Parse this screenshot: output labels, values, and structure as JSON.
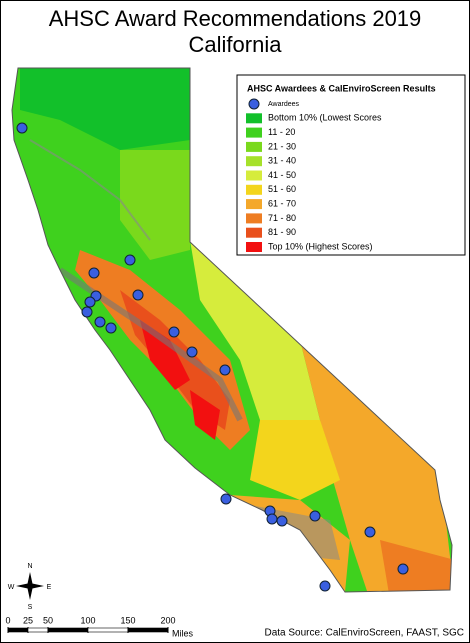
{
  "title": [
    "AHSC Award Recommendations 2019",
    "California"
  ],
  "legend": {
    "title": "AHSC Awardees & CalEnviroScreen Results",
    "items": [
      {
        "label": "Awardees",
        "color": "#3a5fe0"
      },
      {
        "label": "Bottom 10% (Lowest Scores",
        "color": "#12c02a"
      },
      {
        "label": "11 - 20",
        "color": "#3fd11e"
      },
      {
        "label": "21 - 30",
        "color": "#7ad91c"
      },
      {
        "label": "31 - 40",
        "color": "#a6e12a"
      },
      {
        "label": "41 - 50",
        "color": "#d6ec3c"
      },
      {
        "label": "51 - 60",
        "color": "#f3d51c"
      },
      {
        "label": "61 - 70",
        "color": "#f4a82a"
      },
      {
        "label": "71 - 80",
        "color": "#ee7d22"
      },
      {
        "label": "81 - 90",
        "color": "#e9501c"
      },
      {
        "label": "Top 10% (Highest Scores)",
        "color": "#f21010"
      }
    ]
  },
  "compass": {
    "north": "N",
    "east": "E",
    "south": "S",
    "west": "W"
  },
  "scale_bar": {
    "ticks": [
      0,
      25,
      50,
      100,
      150,
      200
    ],
    "unit": "Miles"
  },
  "source": "Data Source: CalEnviroScreen, FAAST, SGC"
}
